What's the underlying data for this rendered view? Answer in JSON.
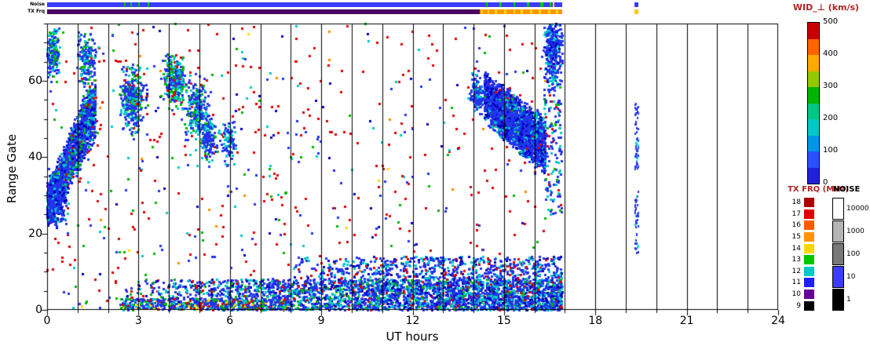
{
  "figure": {
    "description": "SuperDARN-style radar range-time summary plot of perpendicular spectral width versus UT, with noise and transmit-frequency status strips and legends"
  },
  "strips": {
    "noise": {
      "label": "Noise",
      "segments": [
        {
          "x": [
            0,
            16.9
          ],
          "color": "#3c3cff"
        },
        {
          "x": [
            2.52,
            2.58
          ],
          "color": "#00c800"
        },
        {
          "x": [
            2.72,
            2.78
          ],
          "color": "#00c800"
        },
        {
          "x": [
            2.98,
            3.04
          ],
          "color": "#00c800"
        },
        {
          "x": [
            3.3,
            3.36
          ],
          "color": "#00c800"
        },
        {
          "x": [
            14.4,
            14.46
          ],
          "color": "#00c800"
        },
        {
          "x": [
            14.85,
            14.92
          ],
          "color": "#00c800"
        },
        {
          "x": [
            15.3,
            15.37
          ],
          "color": "#00c800"
        },
        {
          "x": [
            15.75,
            15.82
          ],
          "color": "#00c800"
        },
        {
          "x": [
            16.2,
            16.28
          ],
          "color": "#00c800"
        },
        {
          "x": [
            16.5,
            16.56
          ],
          "color": "#00c800"
        },
        {
          "x": [
            16.6,
            16.66
          ],
          "color": "#ffd700"
        },
        {
          "x": [
            19.28,
            19.42
          ],
          "color": "#3c3cff"
        }
      ]
    },
    "txfrq": {
      "label": "TX Frq",
      "segments": [
        {
          "x": [
            0,
            14.2
          ],
          "color": "#4b0064"
        },
        {
          "x": [
            14.2,
            16.9
          ],
          "color": "#ff9600"
        },
        {
          "x": [
            14.25,
            14.32
          ],
          "color": "#ffd700"
        },
        {
          "x": [
            14.45,
            14.52
          ],
          "color": "#ffd700"
        },
        {
          "x": [
            14.7,
            14.78
          ],
          "color": "#ffd700"
        },
        {
          "x": [
            15.0,
            15.08
          ],
          "color": "#ffd700"
        },
        {
          "x": [
            15.3,
            15.36
          ],
          "color": "#ffd700"
        },
        {
          "x": [
            15.55,
            15.62
          ],
          "color": "#ffd700"
        },
        {
          "x": [
            15.85,
            15.92
          ],
          "color": "#ffd700"
        },
        {
          "x": [
            16.15,
            16.22
          ],
          "color": "#ffd700"
        },
        {
          "x": [
            16.45,
            16.52
          ],
          "color": "#ffd700"
        },
        {
          "x": [
            16.7,
            16.78
          ],
          "color": "#ffd700"
        },
        {
          "x": [
            19.28,
            19.42
          ],
          "color": "#ffc800"
        }
      ]
    }
  },
  "axes": {
    "xlabel": "UT hours",
    "ylabel": "Range Gate",
    "xlim": [
      0,
      24
    ],
    "ylim": [
      0,
      75
    ],
    "xticks": [
      0,
      3,
      6,
      9,
      12,
      15,
      18,
      21,
      24
    ],
    "yticks": [
      0,
      20,
      40,
      60
    ],
    "minor_xtick_every_hours": 1,
    "minor_ytick_every_gates": 5,
    "vertical_black_line_every_hour": true
  },
  "colorbar": {
    "title": "WID_⊥ (km/s)",
    "title_color": "#b22222",
    "tick_values": [
      500,
      400,
      300,
      200,
      100,
      0
    ],
    "segment_colors_top_to_bottom": [
      "#c80000",
      "#ff6400",
      "#ffaa00",
      "#96c800",
      "#00b400",
      "#00c882",
      "#00c8c8",
      "#0096e6",
      "#2850ff",
      "#2020dc"
    ]
  },
  "txfrq_legend": {
    "title": "TX FRQ (MHz)",
    "title_color": "#b22222",
    "entries": [
      {
        "label": "18",
        "color": "#aa0000"
      },
      {
        "label": "17",
        "color": "#e10000"
      },
      {
        "label": "16",
        "color": "#ff5a00"
      },
      {
        "label": "15",
        "color": "#ff9600"
      },
      {
        "label": "14",
        "color": "#ffd700"
      },
      {
        "label": "13",
        "color": "#00c800"
      },
      {
        "label": "12",
        "color": "#00c8c8"
      },
      {
        "label": "11",
        "color": "#1e1eff"
      },
      {
        "label": "10",
        "color": "#640096"
      },
      {
        "label": "9",
        "color": "#000000"
      }
    ]
  },
  "noise_legend": {
    "title": "NOISE",
    "title_color": "#000000",
    "entries": [
      {
        "label": "10000",
        "color": "#ffffff"
      },
      {
        "label": "1000",
        "color": "#b4b4b4"
      },
      {
        "label": "100",
        "color": "#787878"
      },
      {
        "label": "10",
        "color": "#3c3cff"
      },
      {
        "label": "1",
        "color": "#000000"
      }
    ]
  },
  "chart_data": {
    "type": "scatter",
    "xlabel": "UT hours",
    "ylabel": "Range Gate",
    "xlim": [
      0,
      24
    ],
    "ylim": [
      0,
      75
    ],
    "color_variable": "WID_⊥ (km/s)",
    "color_range": [
      0,
      500
    ],
    "grid": "vertical black lines at every UT hour",
    "data_coverage_hours": [
      [
        0,
        16.9
      ],
      [
        19.28,
        19.42
      ]
    ],
    "seed": 1337,
    "features": [
      {
        "name": "background-speckle",
        "kind": "uniform",
        "x": [
          0.0,
          16.9
        ],
        "gates": [
          0,
          75
        ],
        "n": 680,
        "colors": [
          [
            "#dd0000",
            0.45
          ],
          [
            "#2233ee",
            0.2
          ],
          [
            "#00b400",
            0.12
          ],
          [
            "#00c8c8",
            0.09
          ],
          [
            "#0000bb",
            0.08
          ],
          [
            "#ff8800",
            0.04
          ],
          [
            "#ffd700",
            0.02
          ]
        ]
      },
      {
        "name": "dawn-diagonal-stripe",
        "kind": "diagonal",
        "x": [
          0.0,
          1.58
        ],
        "gates_start": [
          21,
          33
        ],
        "gates_end": [
          44,
          64
        ],
        "n": 2000,
        "colors": [
          [
            "#2233ee",
            0.55
          ],
          [
            "#0000bb",
            0.13
          ],
          [
            "#00c8c8",
            0.2
          ],
          [
            "#00b400",
            0.08
          ],
          [
            "#dd0000",
            0.04
          ]
        ]
      },
      {
        "name": "dawn-dense-core",
        "kind": "gauss",
        "cx": 0.25,
        "cy": 29,
        "rx": 0.28,
        "ry": 5,
        "n": 520,
        "colors": [
          [
            "#2233ee",
            0.7
          ],
          [
            "#0000bb",
            0.15
          ],
          [
            "#00c8c8",
            0.15
          ]
        ]
      },
      {
        "name": "topleft-cluster",
        "kind": "gauss",
        "cx": 0.18,
        "cy": 67,
        "rx": 0.22,
        "ry": 6,
        "n": 200,
        "colors": [
          [
            "#2233ee",
            0.55
          ],
          [
            "#00c8c8",
            0.3
          ],
          [
            "#00b400",
            0.15
          ]
        ]
      },
      {
        "name": "stripe-top-tail",
        "kind": "gauss",
        "cx": 1.3,
        "cy": 66,
        "rx": 0.25,
        "ry": 6,
        "n": 170,
        "colors": [
          [
            "#2233ee",
            0.6
          ],
          [
            "#00c8c8",
            0.25
          ],
          [
            "#00b400",
            0.15
          ]
        ]
      },
      {
        "name": "cluster-3h-high",
        "kind": "gauss",
        "cx": 2.8,
        "cy": 55,
        "rx": 0.32,
        "ry": 6.5,
        "n": 380,
        "colors": [
          [
            "#2233ee",
            0.5
          ],
          [
            "#00c8c8",
            0.28
          ],
          [
            "#00b400",
            0.15
          ],
          [
            "#dd0000",
            0.07
          ]
        ]
      },
      {
        "name": "cluster-4h-high",
        "kind": "gauss",
        "cx": 4.2,
        "cy": 60,
        "rx": 0.3,
        "ry": 5,
        "n": 300,
        "colors": [
          [
            "#2233ee",
            0.38
          ],
          [
            "#00c8c8",
            0.32
          ],
          [
            "#00b400",
            0.25
          ],
          [
            "#dd0000",
            0.05
          ]
        ]
      },
      {
        "name": "cluster-5h",
        "kind": "gauss",
        "cx": 4.9,
        "cy": 52,
        "rx": 0.3,
        "ry": 6,
        "n": 280,
        "colors": [
          [
            "#2233ee",
            0.55
          ],
          [
            "#00c8c8",
            0.3
          ],
          [
            "#00b400",
            0.15
          ]
        ]
      },
      {
        "name": "cluster-5p3h",
        "kind": "gauss",
        "cx": 5.3,
        "cy": 45,
        "rx": 0.22,
        "ry": 5,
        "n": 150,
        "colors": [
          [
            "#2233ee",
            0.7
          ],
          [
            "#00c8c8",
            0.2
          ],
          [
            "#00b400",
            0.1
          ]
        ]
      },
      {
        "name": "cluster-6h",
        "kind": "gauss",
        "cx": 5.95,
        "cy": 44,
        "rx": 0.2,
        "ry": 5,
        "n": 90,
        "colors": [
          [
            "#2233ee",
            0.7
          ],
          [
            "#00c8c8",
            0.3
          ]
        ]
      },
      {
        "name": "ground-scatter-band",
        "kind": "uniform",
        "x": [
          2.4,
          16.9
        ],
        "gates": [
          0,
          8
        ],
        "n": 3200,
        "xbias": 1.7,
        "colors": [
          [
            "#2233ee",
            0.5
          ],
          [
            "#00c8c8",
            0.25
          ],
          [
            "#0000bb",
            0.12
          ],
          [
            "#00b400",
            0.07
          ],
          [
            "#dd0000",
            0.06
          ]
        ]
      },
      {
        "name": "ground-scatter-lowest-early",
        "kind": "uniform",
        "x": [
          2.4,
          8.0
        ],
        "gates": [
          0,
          3
        ],
        "n": 500,
        "colors": [
          [
            "#2233ee",
            0.45
          ],
          [
            "#00c8c8",
            0.2
          ],
          [
            "#00b400",
            0.15
          ],
          [
            "#dd0000",
            0.12
          ],
          [
            "#ffd700",
            0.08
          ]
        ]
      },
      {
        "name": "ground-scatter-upper",
        "kind": "uniform",
        "x": [
          8.0,
          16.9
        ],
        "gates": [
          8,
          14
        ],
        "n": 650,
        "xbias": 1.4,
        "colors": [
          [
            "#2233ee",
            0.55
          ],
          [
            "#00c8c8",
            0.25
          ],
          [
            "#0000bb",
            0.1
          ],
          [
            "#dd0000",
            0.1
          ]
        ]
      },
      {
        "name": "dusk-leading-cluster",
        "kind": "gauss",
        "cx": 14.1,
        "cy": 56,
        "rx": 0.18,
        "ry": 4,
        "n": 130,
        "colors": [
          [
            "#2233ee",
            0.7
          ],
          [
            "#00c8c8",
            0.3
          ]
        ]
      },
      {
        "name": "dusk-descending-blob",
        "kind": "diagonal",
        "x": [
          14.35,
          16.35
        ],
        "gates_start": [
          49,
          63
        ],
        "gates_end": [
          34,
          51
        ],
        "n": 2900,
        "colors": [
          [
            "#2233ee",
            0.62
          ],
          [
            "#0000bb",
            0.22
          ],
          [
            "#00c8c8",
            0.12
          ],
          [
            "#00b400",
            0.02
          ],
          [
            "#dd0000",
            0.02
          ]
        ]
      },
      {
        "name": "end-top-cluster",
        "kind": "gauss",
        "cx": 16.6,
        "cy": 68,
        "rx": 0.22,
        "ry": 7,
        "n": 380,
        "colors": [
          [
            "#2233ee",
            0.6
          ],
          [
            "#00c8c8",
            0.25
          ],
          [
            "#0000bb",
            0.15
          ]
        ]
      },
      {
        "name": "end-column",
        "kind": "uniform",
        "x": [
          16.3,
          16.9
        ],
        "gates": [
          25,
          60
        ],
        "n": 140,
        "colors": [
          [
            "#2233ee",
            0.6
          ],
          [
            "#00c8c8",
            0.25
          ],
          [
            "#00b400",
            0.1
          ],
          [
            "#dd0000",
            0.05
          ]
        ]
      },
      {
        "name": "isolated-column-19h-low",
        "kind": "uniform",
        "x": [
          19.3,
          19.42
        ],
        "gates": [
          15,
          31
        ],
        "n": 42,
        "size": [
          2,
          3
        ],
        "colors": [
          [
            "#2233ee",
            0.85
          ],
          [
            "#00c8c8",
            0.15
          ]
        ]
      },
      {
        "name": "isolated-column-19h-high",
        "kind": "uniform",
        "x": [
          19.3,
          19.42
        ],
        "gates": [
          37,
          55
        ],
        "n": 55,
        "size": [
          2,
          3
        ],
        "colors": [
          [
            "#2233ee",
            0.85
          ],
          [
            "#00c8c8",
            0.15
          ]
        ]
      }
    ]
  }
}
